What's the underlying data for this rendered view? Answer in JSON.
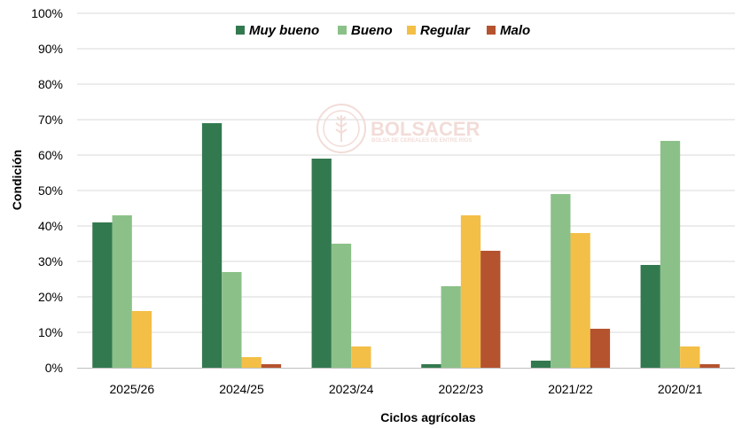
{
  "chart_data": {
    "type": "bar",
    "categories": [
      "2025/26",
      "2024/25",
      "2023/24",
      "2022/23",
      "2021/22",
      "2020/21"
    ],
    "series": [
      {
        "name": "Muy bueno",
        "color": "#33794f",
        "values": [
          41,
          69,
          59,
          1,
          2,
          29
        ]
      },
      {
        "name": "Bueno",
        "color": "#8bc188",
        "values": [
          43,
          27,
          35,
          23,
          49,
          64
        ]
      },
      {
        "name": "Regular",
        "color": "#f4bf47",
        "values": [
          16,
          3,
          6,
          43,
          38,
          6
        ]
      },
      {
        "name": "Malo",
        "color": "#b5532f",
        "values": [
          0,
          1,
          0,
          33,
          11,
          1
        ]
      }
    ],
    "xlabel": "Ciclos agrícolas",
    "ylabel": "Condición",
    "ylim": [
      0,
      100
    ],
    "yticks": [
      "0%",
      "10%",
      "20%",
      "30%",
      "40%",
      "50%",
      "60%",
      "70%",
      "80%",
      "90%",
      "100%"
    ],
    "grid": true,
    "legend_position": "top-center"
  },
  "watermark": {
    "name": "BOLSACER",
    "tagline": "BOLSA DE CEREALES DE ENTRE RÍOS"
  }
}
